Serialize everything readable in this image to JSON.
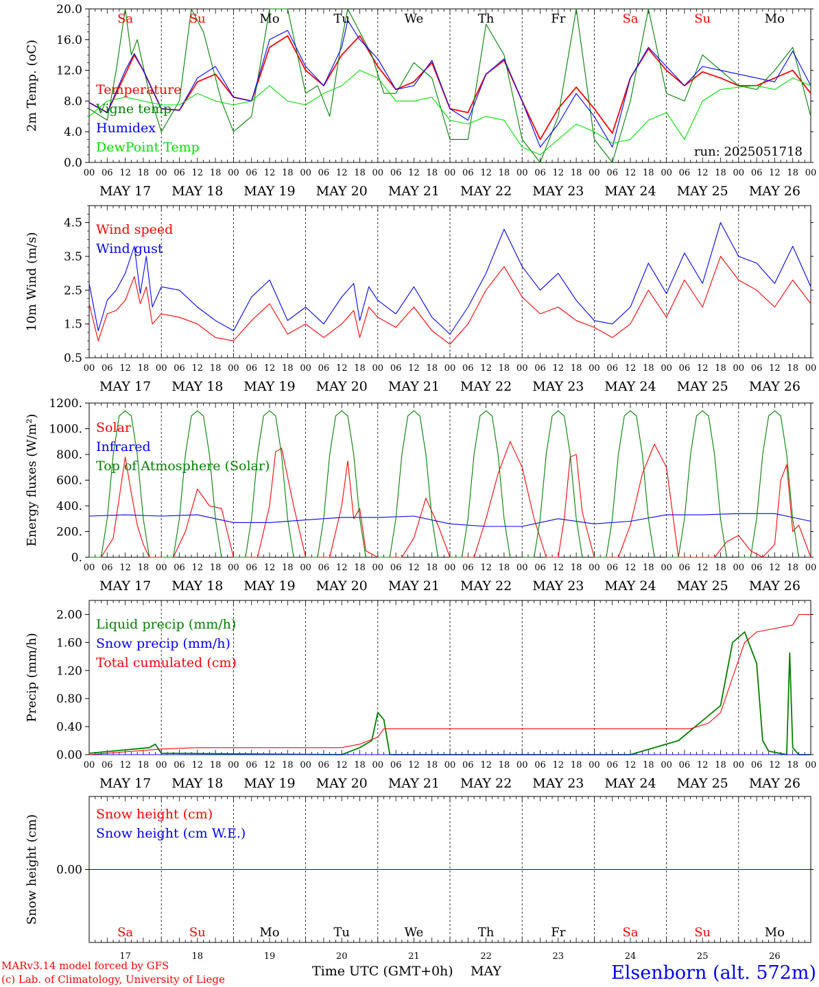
{
  "colors": {
    "red": "#ff0000",
    "darkgreen": "#008000",
    "blue": "#0000ff",
    "lightgreen": "#00e000",
    "black": "#000000"
  },
  "days": {
    "labels": [
      "MAY 17",
      "MAY 18",
      "MAY 19",
      "MAY 20",
      "MAY 21",
      "MAY 22",
      "MAY 23",
      "MAY 24",
      "MAY 25",
      "MAY 26"
    ],
    "numbers": [
      "17",
      "18",
      "19",
      "20",
      "21",
      "22",
      "23",
      "24",
      "25",
      "26"
    ],
    "weekdays": [
      "Sa",
      "Su",
      "Mo",
      "Tu",
      "We",
      "Th",
      "Fr",
      "Sa",
      "Su",
      "Mo"
    ],
    "weekday_colors": [
      "#ff0000",
      "#ff0000",
      "#000000",
      "#000000",
      "#000000",
      "#000000",
      "#000000",
      "#ff0000",
      "#ff0000",
      "#000000"
    ],
    "hour_ticks": [
      "00",
      "06",
      "12",
      "18"
    ],
    "end_tick": "00"
  },
  "footer": {
    "model": "MARv3.14 model forced by GFS",
    "copyright": "(c) Lab. of Climatology, University of Liege",
    "xlabel": "Time UTC (GMT+0h)",
    "month": "MAY",
    "station": "Elsenborn (alt. 572m)"
  },
  "chart_data": [
    {
      "type": "line",
      "ylabel": "2m Temp. (oC)",
      "ylim": [
        0,
        20
      ],
      "yticks": [
        "0.0",
        "4.0",
        "8.0",
        "12.0",
        "16.0",
        "20.0"
      ],
      "run": "run: 2025051718",
      "x": "hours since MAY 17 00 UTC",
      "series": [
        {
          "name": "Temperature",
          "color": "#ff0000",
          "x": [
            0,
            6,
            12,
            15,
            18,
            24,
            30,
            36,
            42,
            48,
            54,
            60,
            66,
            72,
            78,
            84,
            90,
            96,
            102,
            108,
            114,
            120,
            126,
            132,
            138,
            144,
            150,
            156,
            162,
            168,
            174,
            180,
            186,
            192,
            198,
            204,
            210,
            216,
            222,
            228,
            234,
            240
          ],
          "values": [
            7.8,
            6.5,
            11.5,
            14.0,
            12.0,
            7.0,
            6.8,
            10.5,
            11.5,
            8.5,
            8.0,
            15.0,
            16.5,
            12.0,
            10.0,
            14.0,
            16.5,
            12.5,
            9.5,
            10.5,
            13.0,
            7.0,
            6.5,
            11.5,
            13.3,
            8.0,
            3.0,
            7.0,
            9.8,
            7.0,
            3.8,
            11.0,
            14.8,
            12.0,
            10.0,
            11.8,
            11.0,
            10.0,
            10.0,
            11.0,
            12.0,
            9.0
          ]
        },
        {
          "name": "Vigne temp",
          "color": "#008000",
          "x": [
            0,
            6,
            9,
            12,
            14,
            16,
            20,
            24,
            30,
            34,
            38,
            44,
            48,
            54,
            60,
            66,
            72,
            76,
            80,
            84,
            86,
            90,
            94,
            98,
            102,
            108,
            114,
            120,
            126,
            132,
            138,
            144,
            150,
            156,
            162,
            168,
            174,
            180,
            186,
            192,
            198,
            204,
            210,
            216,
            222,
            228,
            234,
            240
          ],
          "values": [
            7.0,
            5.5,
            12.0,
            20.0,
            14.0,
            16.0,
            9.0,
            4.0,
            8.0,
            20.0,
            17.0,
            8.0,
            4.0,
            6.0,
            20.0,
            20.0,
            9.0,
            10.0,
            6.0,
            16.0,
            20.0,
            17.0,
            14.0,
            9.0,
            9.0,
            13.0,
            11.0,
            3.0,
            3.0,
            18.0,
            14.0,
            3.0,
            0.0,
            6.0,
            20.0,
            3.0,
            0.0,
            8.0,
            20.0,
            9.0,
            8.0,
            14.0,
            12.0,
            10.0,
            9.5,
            12.0,
            15.0,
            6.0
          ]
        },
        {
          "name": "Humidex",
          "color": "#0000ff",
          "x": [
            0,
            6,
            12,
            15,
            18,
            24,
            30,
            36,
            42,
            48,
            54,
            60,
            66,
            72,
            78,
            84,
            86,
            90,
            96,
            102,
            108,
            114,
            120,
            126,
            132,
            138,
            144,
            150,
            156,
            162,
            168,
            174,
            180,
            186,
            192,
            198,
            204,
            210,
            216,
            222,
            228,
            234,
            240
          ],
          "values": [
            7.8,
            6.5,
            12.0,
            14.2,
            12.0,
            7.0,
            6.8,
            11.0,
            12.5,
            8.5,
            8.0,
            16.0,
            17.2,
            12.5,
            10.0,
            15.0,
            18.5,
            16.0,
            13.5,
            9.5,
            10.0,
            13.3,
            7.0,
            5.5,
            11.5,
            13.5,
            8.0,
            2.0,
            5.0,
            9.0,
            6.0,
            2.0,
            11.0,
            15.0,
            12.5,
            10.0,
            12.5,
            12.0,
            11.5,
            11.0,
            10.5,
            14.5,
            10.0
          ]
        },
        {
          "name": "DewPoint Temp",
          "color": "#00e000",
          "x": [
            0,
            6,
            12,
            18,
            24,
            30,
            36,
            42,
            48,
            54,
            60,
            66,
            72,
            78,
            84,
            90,
            96,
            102,
            108,
            114,
            120,
            126,
            132,
            138,
            144,
            150,
            156,
            162,
            168,
            174,
            180,
            186,
            192,
            198,
            204,
            210,
            216,
            222,
            228,
            234,
            240
          ],
          "values": [
            6.0,
            8.0,
            8.5,
            8.0,
            7.5,
            7.5,
            9.0,
            8.0,
            7.5,
            8.0,
            10.0,
            8.0,
            7.5,
            9.0,
            10.0,
            12.0,
            11.0,
            8.0,
            8.0,
            8.5,
            5.5,
            5.0,
            6.0,
            5.5,
            2.0,
            1.0,
            3.0,
            5.0,
            4.0,
            2.5,
            3.0,
            5.5,
            6.5,
            3.0,
            8.0,
            9.5,
            9.8,
            10.0,
            9.5,
            11.0,
            10.0
          ]
        }
      ]
    },
    {
      "type": "line",
      "ylabel": "10m Wind (m/s)",
      "ylim": [
        0.5,
        5.0
      ],
      "yticks": [
        "0.5",
        "1.5",
        "2.5",
        "3.5",
        "4.5"
      ],
      "x": "hours since MAY 17 00 UTC",
      "series": [
        {
          "name": "Wind speed",
          "color": "#ff0000",
          "x": [
            0,
            3,
            6,
            9,
            12,
            15,
            17,
            19,
            21,
            24,
            30,
            36,
            42,
            48,
            54,
            60,
            66,
            72,
            78,
            84,
            88,
            90,
            93,
            96,
            102,
            108,
            114,
            120,
            126,
            132,
            138,
            144,
            150,
            156,
            162,
            168,
            174,
            180,
            186,
            192,
            198,
            204,
            210,
            216,
            222,
            228,
            234,
            240
          ],
          "values": [
            2.1,
            1.0,
            1.8,
            1.9,
            2.2,
            2.9,
            2.1,
            2.6,
            1.5,
            1.8,
            1.7,
            1.5,
            1.1,
            1.0,
            1.6,
            2.1,
            1.2,
            1.5,
            1.1,
            1.5,
            1.9,
            1.1,
            2.0,
            1.7,
            1.4,
            2.0,
            1.3,
            0.9,
            1.5,
            2.5,
            3.2,
            2.3,
            1.8,
            2.0,
            1.6,
            1.4,
            1.1,
            1.5,
            2.5,
            1.7,
            2.8,
            2.0,
            3.5,
            2.8,
            2.5,
            2.0,
            2.8,
            2.1
          ]
        },
        {
          "name": "Wind gust",
          "color": "#0000ff",
          "x": [
            0,
            3,
            6,
            9,
            12,
            15,
            17,
            19,
            21,
            24,
            30,
            36,
            42,
            48,
            54,
            60,
            66,
            72,
            78,
            84,
            88,
            90,
            93,
            96,
            102,
            108,
            114,
            120,
            126,
            132,
            138,
            144,
            150,
            156,
            162,
            168,
            174,
            180,
            186,
            192,
            198,
            204,
            210,
            216,
            222,
            228,
            234,
            240
          ],
          "values": [
            2.7,
            1.3,
            2.2,
            2.5,
            3.0,
            3.8,
            2.4,
            3.5,
            2.0,
            2.6,
            2.5,
            2.0,
            1.6,
            1.3,
            2.3,
            2.8,
            1.6,
            2.0,
            1.5,
            2.3,
            2.7,
            1.6,
            2.6,
            2.2,
            1.8,
            2.6,
            1.7,
            1.2,
            2.0,
            3.0,
            4.3,
            3.2,
            2.5,
            3.0,
            2.2,
            1.6,
            1.5,
            2.0,
            3.3,
            2.4,
            3.6,
            2.7,
            4.5,
            3.5,
            3.3,
            2.7,
            3.8,
            2.6
          ]
        }
      ]
    },
    {
      "type": "line",
      "ylabel": "Energy fluxes (W/m²)",
      "ylim": [
        0,
        1200
      ],
      "yticks": [
        "0.",
        "200.",
        "400.",
        "600.",
        "800.",
        "1000.",
        "1200."
      ],
      "x": "hours since MAY 17 00 UTC",
      "series": [
        {
          "name": "Solar",
          "color": "#ff0000",
          "x": [
            0,
            4,
            8,
            12,
            14,
            16,
            18,
            20,
            24,
            28,
            32,
            36,
            40,
            44,
            48,
            52,
            56,
            60,
            62,
            64,
            68,
            72,
            76,
            80,
            84,
            86,
            88,
            90,
            92,
            96,
            100,
            104,
            108,
            112,
            116,
            120,
            124,
            128,
            132,
            136,
            140,
            144,
            148,
            152,
            156,
            158,
            160,
            162,
            164,
            168,
            172,
            176,
            180,
            184,
            188,
            192,
            196,
            200,
            204,
            208,
            212,
            216,
            220,
            224,
            228,
            230,
            232,
            234,
            236,
            240
          ],
          "values": [
            0,
            0,
            150,
            780,
            500,
            250,
            100,
            0,
            0,
            0,
            200,
            530,
            400,
            380,
            0,
            0,
            0,
            400,
            820,
            850,
            400,
            0,
            0,
            0,
            400,
            750,
            300,
            380,
            50,
            0,
            0,
            0,
            150,
            460,
            250,
            0,
            0,
            0,
            300,
            650,
            900,
            700,
            300,
            0,
            0,
            300,
            780,
            800,
            350,
            0,
            0,
            0,
            250,
            650,
            880,
            700,
            0,
            0,
            0,
            0,
            120,
            170,
            50,
            0,
            100,
            600,
            720,
            200,
            250,
            0
          ]
        },
        {
          "name": "Infrared",
          "color": "#0000ff",
          "x": [
            0,
            12,
            24,
            36,
            48,
            60,
            72,
            84,
            96,
            108,
            120,
            132,
            144,
            156,
            168,
            180,
            192,
            204,
            216,
            228,
            240
          ],
          "values": [
            320,
            330,
            320,
            330,
            270,
            270,
            290,
            310,
            310,
            320,
            260,
            240,
            240,
            300,
            260,
            280,
            330,
            330,
            340,
            340,
            280
          ]
        },
        {
          "name": "Top of Atmosphere (Solar)",
          "color": "#008000",
          "x": [
            0,
            4,
            6,
            8,
            10,
            12,
            14,
            16,
            18,
            20
          ],
          "values": [
            0,
            0,
            300,
            800,
            1100,
            1140,
            1100,
            800,
            300,
            0
          ]
        }
      ]
    },
    {
      "type": "line",
      "ylabel": "Precip (mm/h)",
      "ylim": [
        0,
        2.2
      ],
      "yticks": [
        "0.00",
        "0.40",
        "0.80",
        "1.20",
        "1.60",
        "2.00"
      ],
      "x": "hours since MAY 17 00 UTC",
      "series": [
        {
          "name": "Liquid precip (mm/h)",
          "color": "#008000",
          "x": [
            0,
            20,
            22,
            24,
            84,
            90,
            94,
            96,
            98,
            100,
            102,
            180,
            196,
            210,
            214,
            218,
            222,
            224,
            226,
            232,
            233,
            234,
            236,
            240
          ],
          "values": [
            0.02,
            0.1,
            0.15,
            0.02,
            0.0,
            0.1,
            0.2,
            0.6,
            0.5,
            0.0,
            0.0,
            0.0,
            0.2,
            0.7,
            1.6,
            1.75,
            1.3,
            0.2,
            0.05,
            0.0,
            1.45,
            0.1,
            0.0,
            0.0
          ]
        },
        {
          "name": "Snow precip (mm/h)",
          "color": "#0000ff",
          "x": [
            0,
            240
          ],
          "values": [
            0,
            0
          ]
        },
        {
          "name": "Total cumulated (cm)",
          "color": "#ff0000",
          "x": [
            0,
            24,
            36,
            84,
            90,
            96,
            98,
            100,
            200,
            206,
            210,
            214,
            218,
            222,
            234,
            236,
            240
          ],
          "values": [
            0.0,
            0.08,
            0.1,
            0.1,
            0.15,
            0.25,
            0.37,
            0.37,
            0.37,
            0.45,
            0.6,
            1.1,
            1.6,
            1.75,
            1.85,
            2.0,
            2.0
          ]
        }
      ]
    },
    {
      "type": "line",
      "ylabel": "Snow height (cm)",
      "yticks": [
        "0.00"
      ],
      "x": "hours since MAY 17 00 UTC",
      "series": [
        {
          "name": "Snow height (cm)",
          "color": "#ff0000",
          "x": [
            0,
            240
          ],
          "values": [
            0,
            0
          ]
        },
        {
          "name": "Snow height (cm W.E.)",
          "color": "#0000ff",
          "x": [
            0,
            240
          ],
          "values": [
            0,
            0
          ]
        }
      ]
    }
  ]
}
